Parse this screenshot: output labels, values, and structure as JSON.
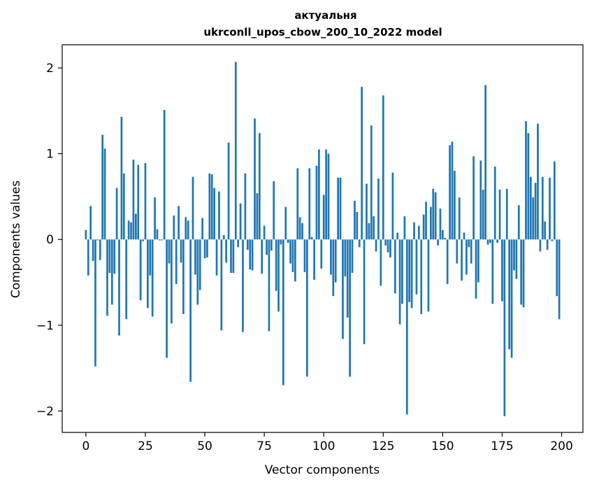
{
  "chart_data": {
    "type": "bar",
    "title_line1": "актуальня",
    "title_line2": "ukrconll_upos_cbow_200_10_2022 model",
    "xlabel": "Vector components",
    "ylabel": "Components values",
    "xlim": [
      -9.95,
      208.95
    ],
    "ylim": [
      -2.25,
      2.27
    ],
    "xticks": [
      0,
      25,
      50,
      75,
      100,
      125,
      150,
      175,
      200
    ],
    "xtick_labels": [
      "0",
      "25",
      "50",
      "75",
      "100",
      "125",
      "150",
      "175",
      "200"
    ],
    "yticks": [
      -2,
      -1,
      0,
      1,
      2
    ],
    "ytick_labels": [
      "−2",
      "−1",
      "0",
      "1",
      "2"
    ],
    "bar_color": "#1f77b4",
    "values": [
      0.11,
      -0.42,
      0.39,
      -0.25,
      -1.48,
      -0.01,
      -0.24,
      1.22,
      1.06,
      -0.89,
      -0.39,
      -0.76,
      -0.4,
      0.6,
      -1.12,
      1.43,
      0.77,
      -0.93,
      0.22,
      0.2,
      0.93,
      0.3,
      0.87,
      -0.71,
      -0.02,
      0.89,
      -0.8,
      -0.42,
      -0.9,
      0.49,
      0.12,
      -0.01,
      -0.01,
      1.51,
      -1.38,
      -0.28,
      -0.98,
      0.28,
      -0.52,
      0.39,
      -0.27,
      -0.87,
      0.26,
      0.22,
      -1.66,
      0.73,
      -0.41,
      -0.76,
      -0.59,
      0.25,
      -0.22,
      -0.21,
      0.77,
      0.76,
      0.6,
      -0.42,
      0.56,
      -1.06,
      0.05,
      -0.27,
      1.13,
      -0.39,
      -0.39,
      2.07,
      -0.09,
      0.42,
      -1.08,
      0.77,
      -0.12,
      -0.35,
      -0.36,
      1.41,
      0.54,
      1.24,
      -0.4,
      0.16,
      -0.18,
      -1.07,
      -0.13,
      0.68,
      -0.6,
      -0.84,
      -0.06,
      -1.7,
      0.38,
      -0.04,
      -0.28,
      -0.38,
      -0.49,
      0.83,
      0.26,
      0.19,
      -0.38,
      -1.6,
      0.83,
      0.03,
      -0.47,
      0.86,
      1.05,
      -0.34,
      0.52,
      1.05,
      1.0,
      -0.41,
      -0.66,
      -0.5,
      0.72,
      0.72,
      -1.16,
      -0.43,
      -0.91,
      -1.6,
      -0.39,
      0.45,
      0.32,
      -0.09,
      1.78,
      -1.22,
      0.65,
      0.19,
      1.33,
      0.27,
      -0.14,
      0.71,
      -0.54,
      1.68,
      -0.07,
      -0.15,
      -0.21,
      0.78,
      -0.63,
      0.08,
      -0.99,
      -0.75,
      0.27,
      -2.04,
      -0.73,
      -0.8,
      0.2,
      -0.64,
      0.16,
      -0.87,
      0.29,
      0.44,
      -0.84,
      0.38,
      0.59,
      0.55,
      -0.07,
      0.36,
      0.11,
      0.02,
      -0.52,
      1.1,
      1.14,
      0.8,
      -0.28,
      0.49,
      -0.48,
      0.08,
      -0.41,
      -0.09,
      -0.28,
      0.97,
      -0.69,
      -0.5,
      0.92,
      0.58,
      1.8,
      -0.06,
      -0.04,
      -0.75,
      0.85,
      -0.04,
      0.58,
      -0.72,
      -2.06,
      0.59,
      -1.28,
      -1.38,
      -0.36,
      -0.46,
      0.4,
      -0.76,
      -0.79,
      1.38,
      1.24,
      0.73,
      0.49,
      0.66,
      1.35,
      -0.14,
      0.73,
      0.21,
      -0.12,
      0.72,
      -0.02,
      0.91,
      -0.66,
      -0.93
    ]
  }
}
